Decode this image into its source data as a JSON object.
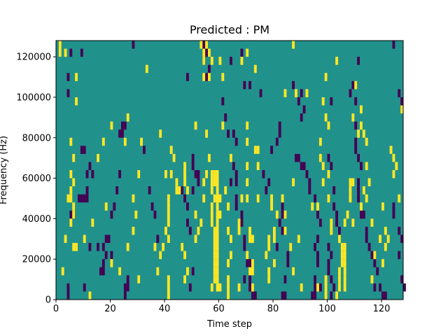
{
  "chart_data": {
    "type": "heatmap",
    "title": "Predicted : PM",
    "xlabel": "Time step",
    "ylabel": "Frequency (Hz)",
    "xlim": [
      0,
      128
    ],
    "ylim": [
      0,
      128000
    ],
    "x_ticks": [
      0,
      20,
      40,
      60,
      80,
      100,
      120
    ],
    "y_ticks": [
      0,
      20000,
      40000,
      60000,
      80000,
      100000,
      120000
    ],
    "colors": {
      "background": "#21918c",
      "high": "#fde725",
      "low": "#440154"
    },
    "colormap": "viridis",
    "cell_height": 4000,
    "high_cells": [
      [
        1,
        124000
      ],
      [
        1,
        120000
      ],
      [
        3,
        120000
      ],
      [
        5,
        60000
      ],
      [
        6,
        68000
      ],
      [
        6,
        56000
      ],
      [
        5,
        52000
      ],
      [
        4,
        48000
      ],
      [
        5,
        48000
      ],
      [
        6,
        44000
      ],
      [
        5,
        36000
      ],
      [
        6,
        40000
      ],
      [
        3,
        28000
      ],
      [
        6,
        24000
      ],
      [
        7,
        24000
      ],
      [
        2,
        12000
      ],
      [
        12,
        0
      ],
      [
        7,
        108000
      ],
      [
        7,
        96000
      ],
      [
        5,
        76000
      ],
      [
        15,
        68000
      ],
      [
        18,
        44000
      ],
      [
        13,
        36000
      ],
      [
        10,
        28000
      ],
      [
        20,
        16000
      ],
      [
        23,
        12000
      ],
      [
        26,
        24000
      ],
      [
        30,
        8000
      ],
      [
        17,
        76000
      ],
      [
        20,
        84000
      ],
      [
        25,
        76000
      ],
      [
        26,
        88000
      ],
      [
        33,
        112000
      ],
      [
        31,
        76000
      ],
      [
        30,
        60000
      ],
      [
        28,
        48000
      ],
      [
        29,
        40000
      ],
      [
        28,
        32000
      ],
      [
        36,
        24000
      ],
      [
        39,
        24000
      ],
      [
        38,
        20000
      ],
      [
        37,
        12000
      ],
      [
        41,
        8000
      ],
      [
        41,
        4000
      ],
      [
        41,
        0
      ],
      [
        38,
        80000
      ],
      [
        42,
        72000
      ],
      [
        43,
        68000
      ],
      [
        40,
        60000
      ],
      [
        42,
        60000
      ],
      [
        44,
        56000
      ],
      [
        44,
        52000
      ],
      [
        41,
        48000
      ],
      [
        41,
        44000
      ],
      [
        41,
        40000
      ],
      [
        41,
        36000
      ],
      [
        40,
        32000
      ],
      [
        41,
        28000
      ],
      [
        46,
        24000
      ],
      [
        47,
        20000
      ],
      [
        52,
        32000
      ],
      [
        53,
        36000
      ],
      [
        48,
        12000
      ],
      [
        54,
        56000
      ],
      [
        54,
        48000
      ],
      [
        47,
        64000
      ],
      [
        47,
        60000
      ],
      [
        47,
        56000
      ],
      [
        45,
        52000
      ],
      [
        57,
        60000
      ],
      [
        57,
        56000
      ],
      [
        57,
        52000
      ],
      [
        58,
        48000
      ],
      [
        57,
        44000
      ],
      [
        57,
        40000
      ],
      [
        57,
        36000
      ],
      [
        58,
        32000
      ],
      [
        58,
        28000
      ],
      [
        58,
        24000
      ],
      [
        58,
        20000
      ],
      [
        58,
        16000
      ],
      [
        58,
        12000
      ],
      [
        58,
        8000
      ],
      [
        57,
        4000
      ],
      [
        59,
        60000
      ],
      [
        59,
        56000
      ],
      [
        59,
        52000
      ],
      [
        59,
        48000
      ],
      [
        59,
        44000
      ],
      [
        59,
        40000
      ],
      [
        59,
        36000
      ],
      [
        59,
        32000
      ],
      [
        59,
        28000
      ],
      [
        59,
        24000
      ],
      [
        59,
        20000
      ],
      [
        59,
        16000
      ],
      [
        59,
        12000
      ],
      [
        59,
        8000
      ],
      [
        59,
        4000
      ],
      [
        60,
        4000
      ],
      [
        60,
        40000
      ],
      [
        60,
        48000
      ],
      [
        55,
        60000
      ],
      [
        56,
        68000
      ],
      [
        58,
        56000
      ],
      [
        58,
        60000
      ],
      [
        53,
        124000
      ],
      [
        54,
        120000
      ],
      [
        55,
        124000
      ],
      [
        56,
        120000
      ],
      [
        54,
        116000
      ],
      [
        57,
        116000
      ],
      [
        60,
        116000
      ],
      [
        54,
        108000
      ],
      [
        61,
        108000
      ],
      [
        61,
        84000
      ],
      [
        64,
        68000
      ],
      [
        62,
        52000
      ],
      [
        63,
        44000
      ],
      [
        63,
        32000
      ],
      [
        64,
        28000
      ],
      [
        64,
        20000
      ],
      [
        63,
        16000
      ],
      [
        63,
        8000
      ],
      [
        63,
        4000
      ],
      [
        63,
        0
      ],
      [
        56,
        108000
      ],
      [
        51,
        84000
      ],
      [
        55,
        80000
      ],
      [
        48,
        52000
      ],
      [
        51,
        40000
      ],
      [
        51,
        28000
      ],
      [
        47,
        8000
      ],
      [
        70,
        120000
      ],
      [
        68,
        116000
      ],
      [
        73,
        112000
      ],
      [
        70,
        84000
      ],
      [
        70,
        76000
      ],
      [
        70,
        64000
      ],
      [
        70,
        56000
      ],
      [
        70,
        48000
      ],
      [
        68,
        48000
      ],
      [
        67,
        36000
      ],
      [
        67,
        32000
      ],
      [
        71,
        28000
      ],
      [
        70,
        20000
      ],
      [
        72,
        16000
      ],
      [
        72,
        12000
      ],
      [
        67,
        4000
      ],
      [
        71,
        32000
      ],
      [
        73,
        72000
      ],
      [
        74,
        64000
      ],
      [
        74,
        48000
      ],
      [
        71,
        12000
      ],
      [
        72,
        28000
      ],
      [
        74,
        72000
      ],
      [
        72,
        4000
      ],
      [
        78,
        28000
      ],
      [
        78,
        24000
      ],
      [
        77,
        20000
      ],
      [
        78,
        12000
      ],
      [
        79,
        48000
      ],
      [
        79,
        44000
      ],
      [
        84,
        100000
      ],
      [
        88,
        100000
      ],
      [
        92,
        100000
      ],
      [
        83,
        48000
      ],
      [
        84,
        40000
      ],
      [
        84,
        32000
      ],
      [
        81,
        40000
      ],
      [
        80,
        32000
      ],
      [
        80,
        28000
      ],
      [
        80,
        16000
      ],
      [
        78,
        8000
      ],
      [
        87,
        56000
      ],
      [
        86,
        24000
      ],
      [
        90,
        4000
      ],
      [
        89,
        28000
      ],
      [
        87,
        12000
      ],
      [
        87,
        124000
      ],
      [
        98,
        96000
      ],
      [
        99,
        88000
      ],
      [
        100,
        84000
      ],
      [
        100,
        60000
      ],
      [
        100,
        48000
      ],
      [
        97,
        76000
      ],
      [
        98,
        56000
      ],
      [
        101,
        36000
      ],
      [
        101,
        32000
      ],
      [
        104,
        28000
      ],
      [
        105,
        24000
      ],
      [
        105,
        20000
      ],
      [
        105,
        16000
      ],
      [
        104,
        12000
      ],
      [
        104,
        8000
      ],
      [
        104,
        4000
      ],
      [
        103,
        0
      ],
      [
        106,
        20000
      ],
      [
        106,
        16000
      ],
      [
        106,
        24000
      ],
      [
        106,
        12000
      ],
      [
        106,
        8000
      ],
      [
        106,
        4000
      ],
      [
        96,
        44000
      ],
      [
        94,
        44000
      ],
      [
        97,
        68000
      ],
      [
        98,
        64000
      ],
      [
        96,
        4000
      ],
      [
        99,
        0
      ],
      [
        99,
        4000
      ],
      [
        99,
        8000
      ],
      [
        103,
        116000
      ],
      [
        99,
        108000
      ],
      [
        109,
        88000
      ],
      [
        110,
        104000
      ],
      [
        112,
        92000
      ],
      [
        112,
        84000
      ],
      [
        111,
        80000
      ],
      [
        113,
        80000
      ],
      [
        114,
        76000
      ],
      [
        114,
        64000
      ],
      [
        115,
        56000
      ],
      [
        113,
        52000
      ],
      [
        114,
        48000
      ],
      [
        112,
        44000
      ],
      [
        116,
        36000
      ],
      [
        119,
        28000
      ],
      [
        121,
        24000
      ],
      [
        117,
        20000
      ],
      [
        116,
        8000
      ],
      [
        123,
        72000
      ],
      [
        124,
        68000
      ],
      [
        124,
        60000
      ],
      [
        125,
        64000
      ],
      [
        126,
        48000
      ],
      [
        127,
        92000
      ],
      [
        120,
        16000
      ],
      [
        108,
        48000
      ],
      [
        107,
        40000
      ],
      [
        106,
        36000
      ],
      [
        109,
        36000
      ],
      [
        108,
        56000
      ],
      [
        108,
        52000
      ],
      [
        109,
        56000
      ],
      [
        120,
        44000
      ],
      [
        121,
        32000
      ],
      [
        122,
        28000
      ]
    ],
    "low_cells": [
      [
        5,
        120000
      ],
      [
        9,
        120000
      ],
      [
        4,
        108000
      ],
      [
        4,
        100000
      ],
      [
        9,
        72000
      ],
      [
        10,
        72000
      ],
      [
        12,
        64000
      ],
      [
        13,
        60000
      ],
      [
        11,
        60000
      ],
      [
        8,
        48000
      ],
      [
        9,
        48000
      ],
      [
        10,
        48000
      ],
      [
        11,
        52000
      ],
      [
        11,
        48000
      ],
      [
        5,
        40000
      ],
      [
        6,
        40000
      ],
      [
        12,
        24000
      ],
      [
        15,
        24000
      ],
      [
        17,
        24000
      ],
      [
        18,
        20000
      ],
      [
        17,
        16000
      ],
      [
        16,
        12000
      ],
      [
        17,
        12000
      ],
      [
        10,
        4000
      ],
      [
        4,
        0
      ],
      [
        4,
        4000
      ],
      [
        28,
        124000
      ],
      [
        24,
        84000
      ],
      [
        25,
        84000
      ],
      [
        23,
        80000
      ],
      [
        24,
        80000
      ],
      [
        25,
        4000
      ],
      [
        26,
        4000
      ],
      [
        25,
        0
      ],
      [
        26,
        8000
      ],
      [
        23,
        60000
      ],
      [
        22,
        52000
      ],
      [
        21,
        44000
      ],
      [
        20,
        40000
      ],
      [
        19,
        28000
      ],
      [
        18,
        28000
      ],
      [
        20,
        20000
      ],
      [
        32,
        72000
      ],
      [
        34,
        52000
      ],
      [
        35,
        44000
      ],
      [
        36,
        40000
      ],
      [
        37,
        28000
      ],
      [
        46,
        52000
      ],
      [
        47,
        48000
      ],
      [
        48,
        44000
      ],
      [
        48,
        36000
      ],
      [
        49,
        32000
      ],
      [
        50,
        52000
      ],
      [
        52,
        56000
      ],
      [
        52,
        60000
      ],
      [
        50,
        64000
      ],
      [
        50,
        68000
      ],
      [
        51,
        60000
      ],
      [
        50,
        12000
      ],
      [
        49,
        4000
      ],
      [
        54,
        124000
      ],
      [
        54,
        120000
      ],
      [
        54,
        116000
      ],
      [
        55,
        120000
      ],
      [
        56,
        112000
      ],
      [
        55,
        108000
      ],
      [
        48,
        108000
      ],
      [
        61,
        96000
      ],
      [
        62,
        88000
      ],
      [
        63,
        80000
      ],
      [
        65,
        80000
      ],
      [
        66,
        76000
      ],
      [
        65,
        64000
      ],
      [
        66,
        60000
      ],
      [
        64,
        56000
      ],
      [
        66,
        56000
      ],
      [
        66,
        48000
      ],
      [
        66,
        44000
      ],
      [
        68,
        40000
      ],
      [
        68,
        36000
      ],
      [
        69,
        28000
      ],
      [
        69,
        24000
      ],
      [
        70,
        16000
      ],
      [
        69,
        8000
      ],
      [
        71,
        16000
      ],
      [
        71,
        8000
      ],
      [
        71,
        4000
      ],
      [
        72,
        0
      ],
      [
        73,
        0
      ],
      [
        64,
        116000
      ],
      [
        68,
        120000
      ],
      [
        69,
        104000
      ],
      [
        71,
        104000
      ],
      [
        75,
        100000
      ],
      [
        76,
        60000
      ],
      [
        77,
        52000
      ],
      [
        78,
        56000
      ],
      [
        79,
        72000
      ],
      [
        81,
        76000
      ],
      [
        82,
        84000
      ],
      [
        82,
        80000
      ],
      [
        83,
        44000
      ],
      [
        83,
        40000
      ],
      [
        82,
        36000
      ],
      [
        83,
        32000
      ],
      [
        81,
        24000
      ],
      [
        85,
        20000
      ],
      [
        85,
        16000
      ],
      [
        84,
        8000
      ],
      [
        83,
        0
      ],
      [
        84,
        0
      ],
      [
        87,
        104000
      ],
      [
        90,
        100000
      ],
      [
        89,
        96000
      ],
      [
        91,
        92000
      ],
      [
        90,
        88000
      ],
      [
        88,
        68000
      ],
      [
        89,
        68000
      ],
      [
        90,
        64000
      ],
      [
        91,
        64000
      ],
      [
        92,
        60000
      ],
      [
        93,
        56000
      ],
      [
        93,
        52000
      ],
      [
        95,
        48000
      ],
      [
        96,
        40000
      ],
      [
        97,
        36000
      ],
      [
        96,
        28000
      ],
      [
        95,
        24000
      ],
      [
        96,
        20000
      ],
      [
        96,
        16000
      ],
      [
        95,
        8000
      ],
      [
        95,
        4000
      ],
      [
        94,
        0
      ],
      [
        95,
        0
      ],
      [
        97,
        4000
      ],
      [
        101,
        96000
      ],
      [
        100,
        68000
      ],
      [
        101,
        64000
      ],
      [
        102,
        52000
      ],
      [
        102,
        44000
      ],
      [
        103,
        40000
      ],
      [
        103,
        36000
      ],
      [
        104,
        32000
      ],
      [
        100,
        24000
      ],
      [
        101,
        20000
      ],
      [
        100,
        16000
      ],
      [
        100,
        12000
      ],
      [
        101,
        8000
      ],
      [
        102,
        4000
      ],
      [
        101,
        0
      ],
      [
        108,
        100000
      ],
      [
        111,
        116000
      ],
      [
        109,
        104000
      ],
      [
        110,
        96000
      ],
      [
        110,
        84000
      ],
      [
        110,
        76000
      ],
      [
        110,
        72000
      ],
      [
        111,
        68000
      ],
      [
        112,
        64000
      ],
      [
        111,
        56000
      ],
      [
        111,
        52000
      ],
      [
        111,
        48000
      ],
      [
        112,
        40000
      ],
      [
        113,
        40000
      ],
      [
        114,
        32000
      ],
      [
        114,
        28000
      ],
      [
        115,
        24000
      ],
      [
        116,
        20000
      ],
      [
        117,
        16000
      ],
      [
        118,
        12000
      ],
      [
        117,
        4000
      ],
      [
        119,
        4000
      ],
      [
        120,
        0
      ],
      [
        121,
        0
      ],
      [
        124,
        44000
      ],
      [
        124,
        40000
      ],
      [
        126,
        32000
      ],
      [
        127,
        28000
      ],
      [
        126,
        20000
      ],
      [
        127,
        8000
      ],
      [
        128,
        4000
      ],
      [
        127,
        96000
      ],
      [
        126,
        100000
      ],
      [
        124,
        124000
      ]
    ]
  }
}
